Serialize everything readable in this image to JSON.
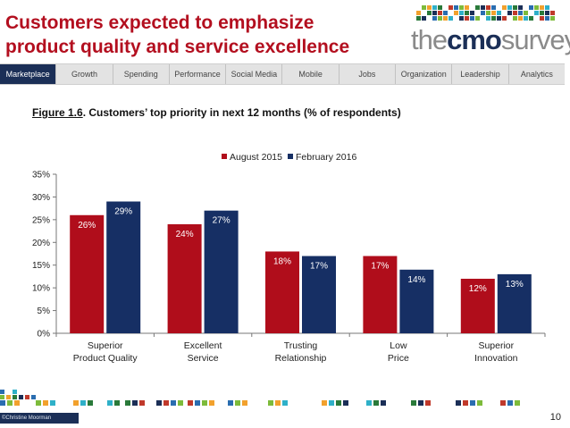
{
  "header": {
    "title_line1": "Customers expected to emphasize",
    "title_line2": "product quality and service excellence"
  },
  "logo": {
    "text_the": "the",
    "text_cmo": "cmo",
    "text_survey": "survey",
    "icon": "mosaic-grid-icon"
  },
  "nav": {
    "tabs": [
      "Marketplace",
      "Growth",
      "Spending",
      "Performance",
      "Social Media",
      "Mobile",
      "Jobs",
      "Organization",
      "Leadership",
      "Analytics"
    ],
    "active_index": 0
  },
  "figure": {
    "label": "Figure 1.6",
    "caption": ".  Customers’ top priority in next 12 months (% of respondents)"
  },
  "chart_data": {
    "type": "bar",
    "categories": [
      [
        "Superior",
        "Product Quality"
      ],
      [
        "Excellent",
        "Service"
      ],
      [
        "Trusting",
        "Relationship"
      ],
      [
        "Low",
        "Price"
      ],
      [
        "Superior",
        "Innovation"
      ]
    ],
    "series": [
      {
        "name": "August 2015",
        "color": "#b00d1b",
        "values": [
          26,
          24,
          18,
          17,
          12
        ]
      },
      {
        "name": "February 2016",
        "color": "#162f64",
        "values": [
          29,
          27,
          17,
          14,
          13
        ]
      }
    ],
    "ylim": [
      0,
      35
    ],
    "yticks": [
      0,
      5,
      10,
      15,
      20,
      25,
      30,
      35
    ],
    "tick_format": "%",
    "data_label_format": "%",
    "legend_position": "top-center",
    "grid": false
  },
  "footer": {
    "credit": "©Christine Moorman",
    "page_number": "10",
    "square_colors": [
      "#2a6db0",
      "#7dbb3b",
      "#f2a12d",
      "#2fb0c8",
      "#2a7a3a",
      "#1b2f57",
      "#c0392b"
    ]
  }
}
